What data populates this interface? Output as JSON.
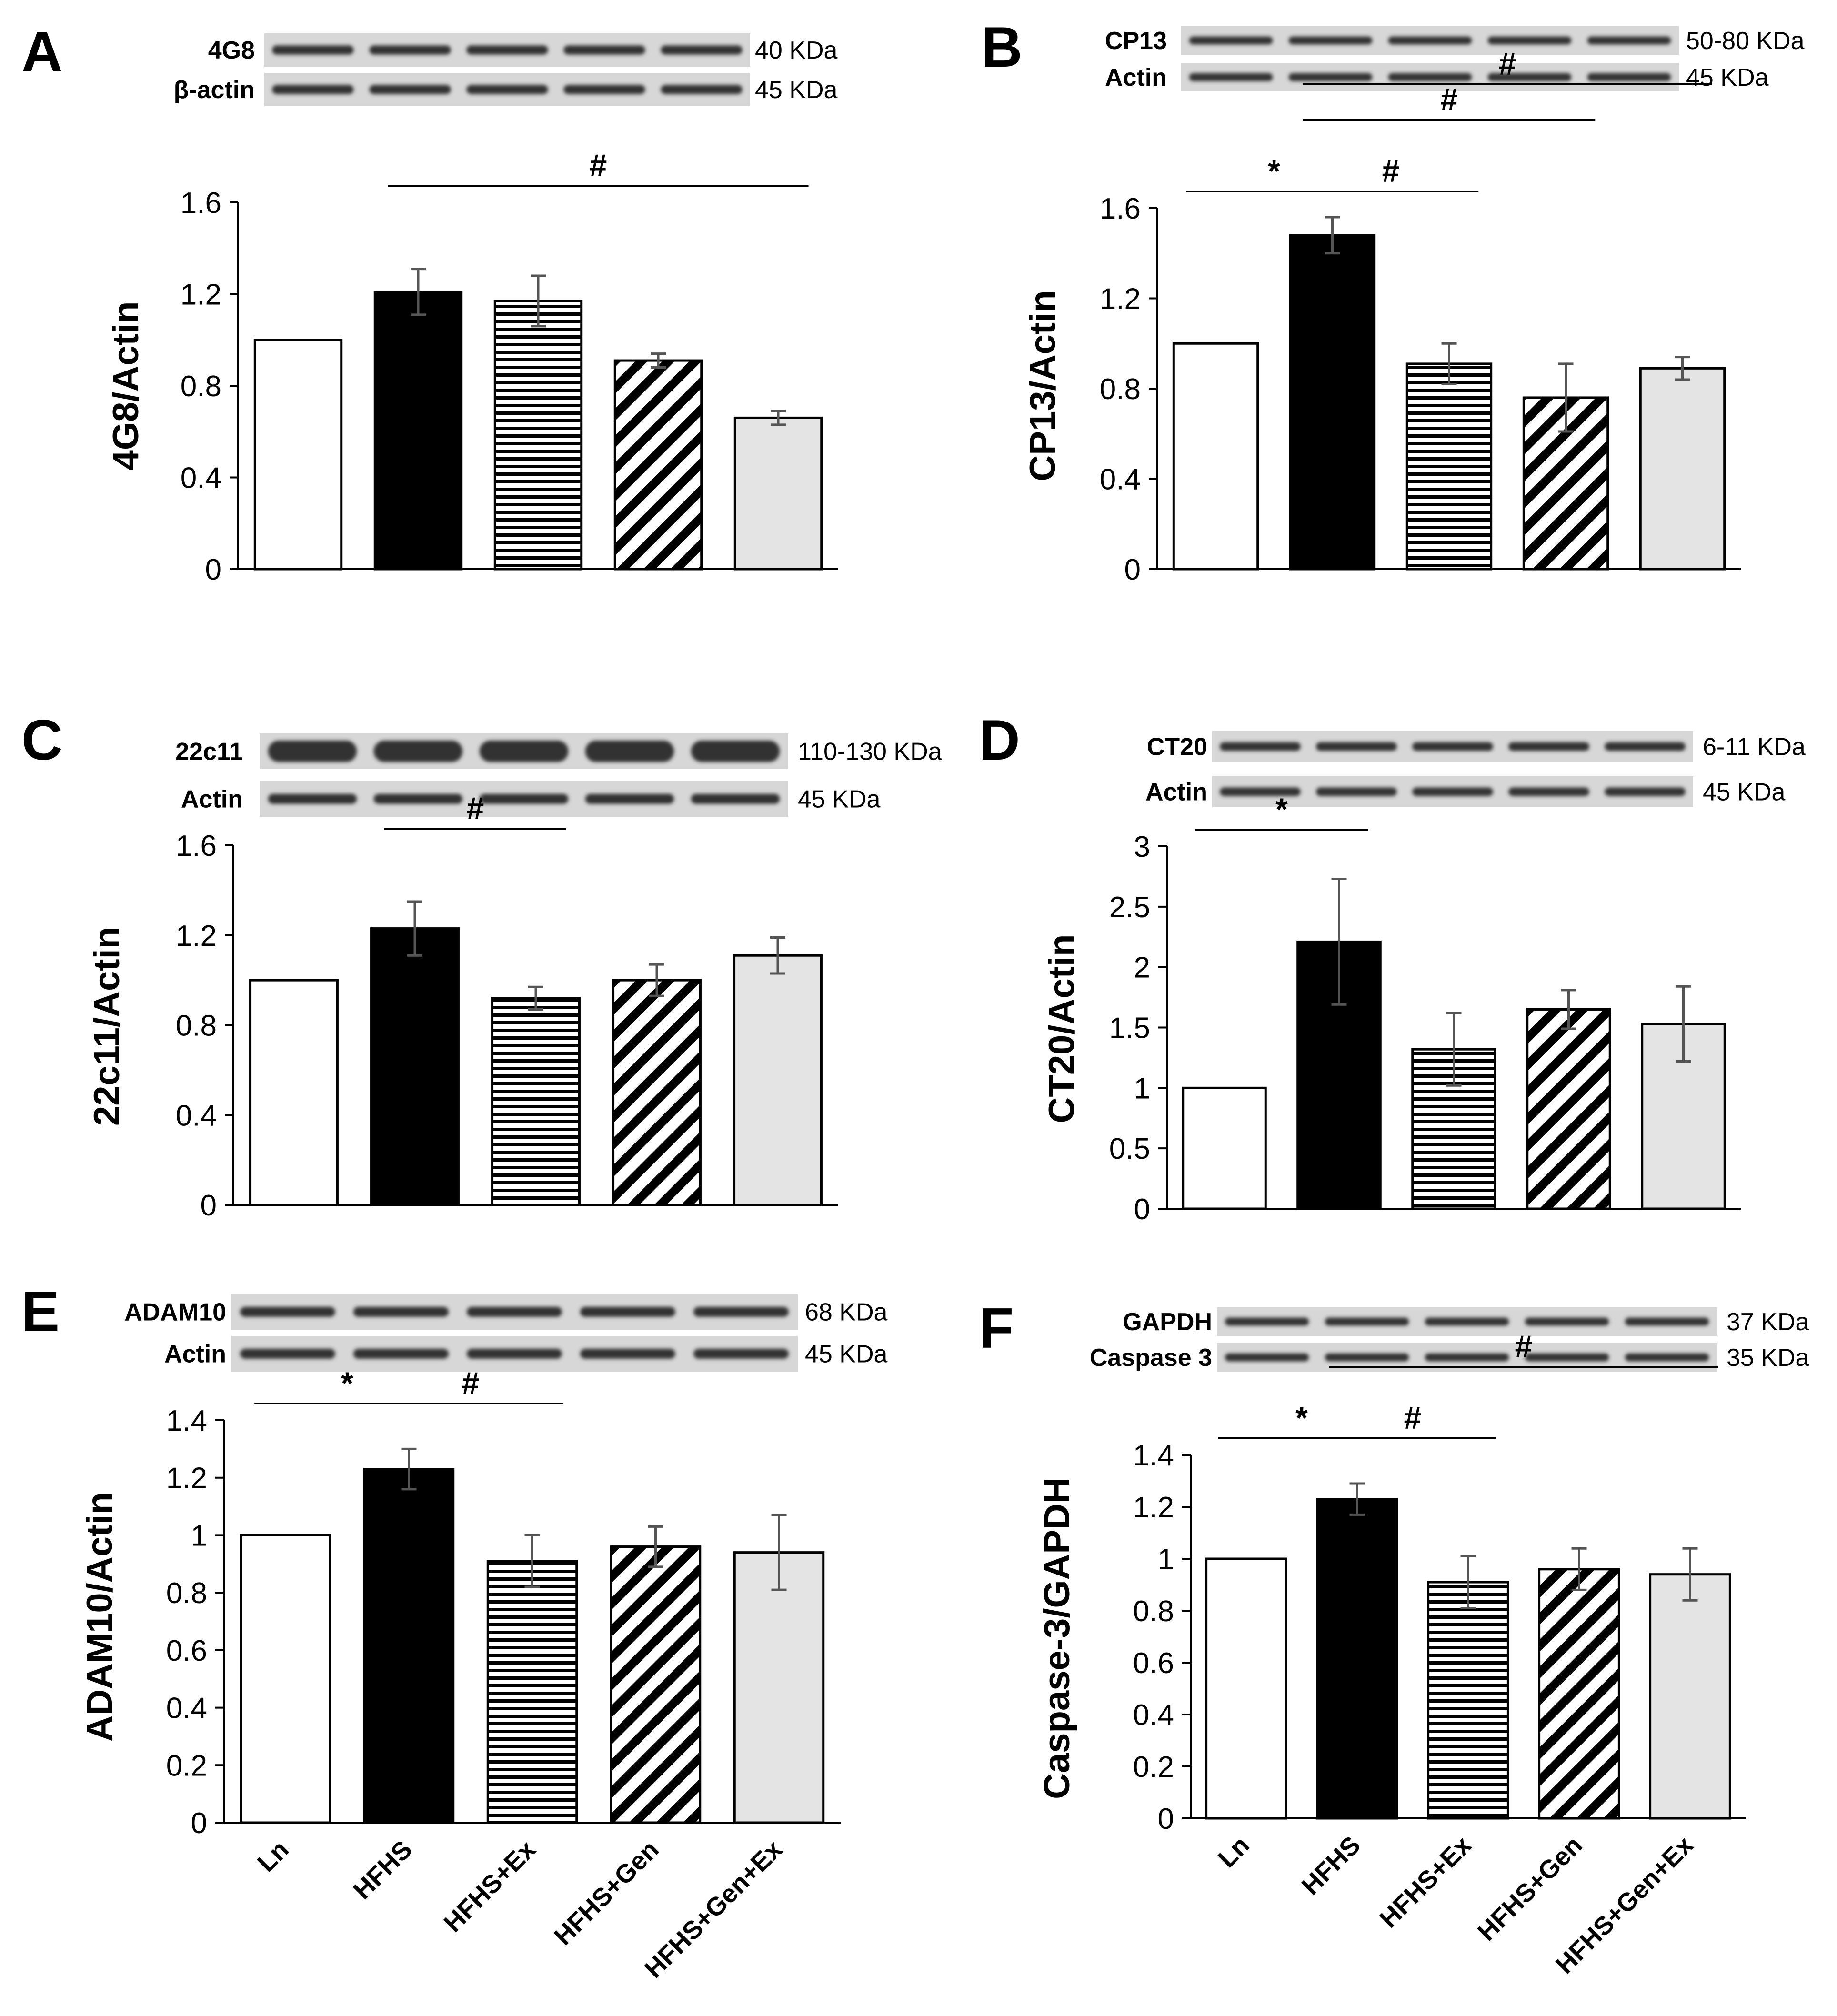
{
  "colors": {
    "axis": "#000000",
    "error_bar": "#555555",
    "bar_fill_white": "#ffffff",
    "bar_fill_black": "#000000",
    "bar_fill_gray": "#e4e4e4",
    "blot_background": "#d7d7d7",
    "blot_band": "#333333"
  },
  "group_labels": [
    "Ln",
    "HFHS",
    "HFHS+Ex",
    "HFHS+Gen",
    "HFHS+Gen+Ex"
  ],
  "bar_patterns": [
    "white",
    "black",
    "horizontal-stripes",
    "diagonal-stripes",
    "gray"
  ],
  "chart_data": [
    {
      "panel": "A",
      "type": "bar",
      "ylabel": "4G8/Actin",
      "yticks": [
        "0",
        "0.4",
        "0.8",
        "1.2",
        "1.6"
      ],
      "ylim": [
        0,
        1.6
      ],
      "categories": [
        "Ln",
        "HFHS",
        "HFHS+Ex",
        "HFHS+Gen",
        "HFHS+Gen+Ex"
      ],
      "values": [
        1.0,
        1.21,
        1.17,
        0.91,
        0.66
      ],
      "errors": [
        0.0,
        0.1,
        0.11,
        0.03,
        0.03
      ],
      "significance": [
        {
          "from": 1,
          "to": 4,
          "symbol": "#"
        }
      ],
      "blots": [
        {
          "label": "4G8",
          "kda": "40 KDa"
        },
        {
          "label": "β-actin",
          "kda": "45 KDa"
        }
      ]
    },
    {
      "panel": "B",
      "type": "bar",
      "ylabel": "CP13/Actin",
      "yticks": [
        "0",
        "0.4",
        "0.8",
        "1.2",
        "1.6"
      ],
      "ylim": [
        0,
        1.6
      ],
      "categories": [
        "Ln",
        "HFHS",
        "HFHS+Ex",
        "HFHS+Gen",
        "HFHS+Gen+Ex"
      ],
      "values": [
        1.0,
        1.48,
        0.91,
        0.76,
        0.89
      ],
      "errors": [
        0.0,
        0.08,
        0.09,
        0.15,
        0.05
      ],
      "significance": [
        {
          "from": 0,
          "to": 1,
          "symbol": "*"
        },
        {
          "from": 1,
          "to": 2,
          "symbol": "#"
        },
        {
          "from": 1,
          "to": 3,
          "symbol": "#"
        },
        {
          "from": 1,
          "to": 4,
          "symbol": "#"
        }
      ],
      "blots": [
        {
          "label": "CP13",
          "kda": "50-80 KDa"
        },
        {
          "label": "Actin",
          "kda": "45 KDa"
        }
      ]
    },
    {
      "panel": "C",
      "type": "bar",
      "ylabel": "22c11/Actin",
      "yticks": [
        "0",
        "0.4",
        "0.8",
        "1.2",
        "1.6"
      ],
      "ylim": [
        0,
        1.6
      ],
      "categories": [
        "Ln",
        "HFHS",
        "HFHS+Ex",
        "HFHS+Gen",
        "HFHS+Gen+Ex"
      ],
      "values": [
        1.0,
        1.23,
        0.92,
        1.0,
        1.11
      ],
      "errors": [
        0.0,
        0.12,
        0.05,
        0.07,
        0.08
      ],
      "significance": [
        {
          "from": 1,
          "to": 2,
          "symbol": "#"
        }
      ],
      "blots": [
        {
          "label": "22c11",
          "kda": "110-130 KDa"
        },
        {
          "label": "Actin",
          "kda": "45 KDa"
        }
      ]
    },
    {
      "panel": "D",
      "type": "bar",
      "ylabel": "CT20/Actin",
      "yticks": [
        "0",
        "0.5",
        "1",
        "1.5",
        "2",
        "2.5",
        "3"
      ],
      "ylim": [
        0,
        3
      ],
      "categories": [
        "Ln",
        "HFHS",
        "HFHS+Ex",
        "HFHS+Gen",
        "HFHS+Gen+Ex"
      ],
      "values": [
        1.0,
        2.21,
        1.32,
        1.65,
        1.53
      ],
      "errors": [
        0.0,
        0.52,
        0.3,
        0.16,
        0.31
      ],
      "significance": [
        {
          "from": 0,
          "to": 1,
          "symbol": "*"
        }
      ],
      "blots": [
        {
          "label": "CT20",
          "kda": "6-11 KDa"
        },
        {
          "label": "Actin",
          "kda": "45 KDa"
        }
      ]
    },
    {
      "panel": "E",
      "type": "bar",
      "ylabel": "ADAM10/Actin",
      "yticks": [
        "0",
        "0.2",
        "0.4",
        "0.6",
        "0.8",
        "1",
        "1.2",
        "1.4"
      ],
      "ylim": [
        0,
        1.4
      ],
      "categories": [
        "Ln",
        "HFHS",
        "HFHS+Ex",
        "HFHS+Gen",
        "HFHS+Gen+Ex"
      ],
      "values": [
        1.0,
        1.23,
        0.91,
        0.96,
        0.94
      ],
      "errors": [
        0.0,
        0.07,
        0.09,
        0.07,
        0.13
      ],
      "significance": [
        {
          "from": 0,
          "to": 1,
          "symbol": "*"
        },
        {
          "from": 1,
          "to": 2,
          "symbol": "#"
        }
      ],
      "blots": [
        {
          "label": "ADAM10",
          "kda": "68 KDa"
        },
        {
          "label": "Actin",
          "kda": "45 KDa"
        }
      ]
    },
    {
      "panel": "F",
      "type": "bar",
      "ylabel": "Caspase-3/GAPDH",
      "yticks": [
        "0",
        "0.2",
        "0.4",
        "0.6",
        "0.8",
        "1",
        "1.2",
        "1.4"
      ],
      "ylim": [
        0,
        1.4
      ],
      "categories": [
        "Ln",
        "HFHS",
        "HFHS+Ex",
        "HFHS+Gen",
        "HFHS+Gen+Ex"
      ],
      "values": [
        1.0,
        1.23,
        0.91,
        0.96,
        0.94
      ],
      "errors": [
        0.0,
        0.06,
        0.1,
        0.08,
        0.1
      ],
      "significance": [
        {
          "from": 0,
          "to": 1,
          "symbol": "*"
        },
        {
          "from": 1,
          "to": 2,
          "symbol": "#"
        },
        {
          "from": 1,
          "to": 4,
          "symbol": "#"
        }
      ],
      "blots": [
        {
          "label": "GAPDH",
          "kda": "37 KDa"
        },
        {
          "label": "Caspase 3",
          "kda": "35 KDa"
        }
      ]
    }
  ]
}
